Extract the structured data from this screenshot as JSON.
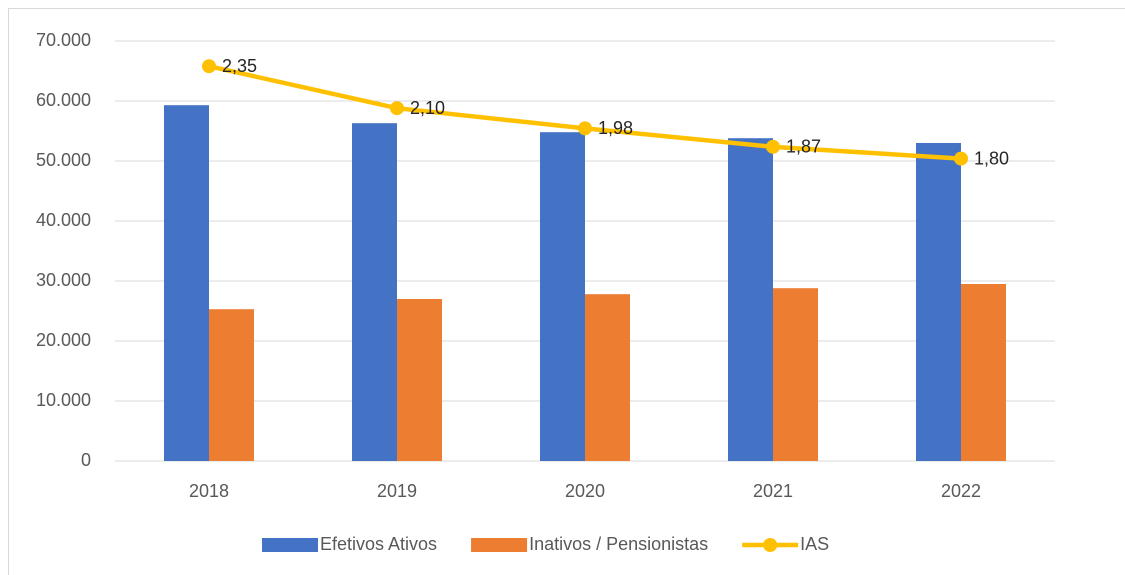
{
  "chart_data": {
    "type": "bar",
    "categories": [
      "2018",
      "2019",
      "2020",
      "2021",
      "2022"
    ],
    "series": [
      {
        "name": "Efetivos Ativos",
        "color": "#4472c4",
        "values": [
          59300,
          56300,
          54800,
          53800,
          53000
        ]
      },
      {
        "name": "Inativos / Pensionistas",
        "color": "#ed7d31",
        "values": [
          25300,
          27000,
          27800,
          28800,
          29500
        ]
      },
      {
        "name": "IAS",
        "type": "line",
        "axis": "y2",
        "color": "#ffc000",
        "values": [
          2.35,
          2.1,
          1.98,
          1.87,
          1.8
        ],
        "value_labels": [
          "2,35",
          "2,10",
          "1,98",
          "1,87",
          "1,80"
        ]
      }
    ],
    "ylim": [
      0,
      70000
    ],
    "yticks": [
      0,
      {
        "value": 10000,
        "label": "10.000"
      },
      {
        "value": 20000,
        "label": "20.000"
      },
      {
        "value": 30000,
        "label": "30.000"
      },
      {
        "value": 40000,
        "label": "40.000"
      },
      {
        "value": 50000,
        "label": "50.000"
      },
      {
        "value": 60000,
        "label": "60.000"
      },
      {
        "value": 70000,
        "label": "70.000"
      }
    ],
    "y2lim": [
      0,
      2.5
    ],
    "grid": true,
    "legend": "bottom"
  }
}
